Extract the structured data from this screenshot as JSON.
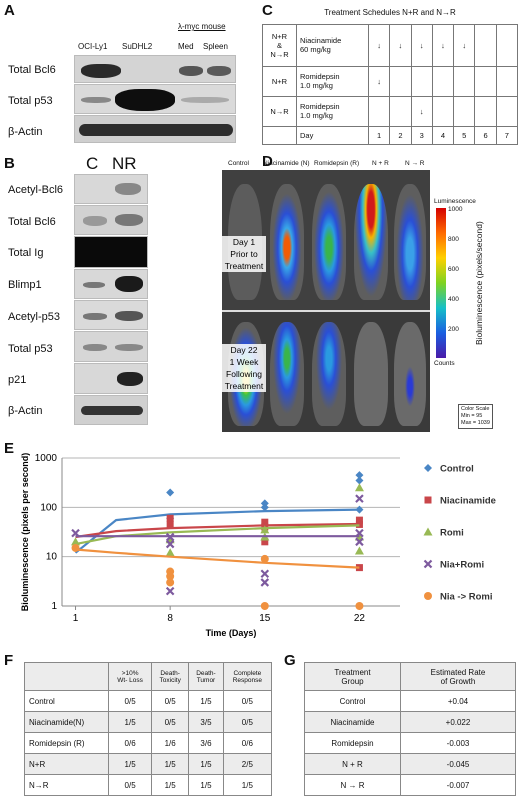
{
  "panel_letters": {
    "a": "A",
    "b": "B",
    "c": "C",
    "d": "D",
    "e": "E",
    "f": "F",
    "g": "G"
  },
  "panel_a": {
    "lanes": [
      "OCI-Ly1",
      "SuDHL2",
      "Med",
      "Spleen"
    ],
    "group_label": "λ-myc mouse",
    "rows": [
      "Total Bcl6",
      "Total p53",
      "β-Actin"
    ]
  },
  "panel_b": {
    "lanes": [
      "C",
      "NR"
    ],
    "rows": [
      "Acetyl-Bcl6",
      "Total Bcl6",
      "Total Ig",
      "Blimp1",
      "Acetyl-p53",
      "Total p53",
      "p21",
      "β-Actin"
    ]
  },
  "panel_c": {
    "title": "Treatment Schedules N+R and N→R",
    "rows": [
      {
        "group": "N+R\n&\nN→R",
        "drug": "Niacinamide\n60 mg/kg",
        "marks": [
          "↓",
          "↓",
          "↓",
          "↓",
          "↓",
          "",
          ""
        ]
      },
      {
        "group": "N+R",
        "drug": "Romidepsin\n1.0 mg/kg",
        "marks": [
          "↓",
          "",
          "",
          "",
          "",
          "",
          ""
        ]
      },
      {
        "group": "N→R",
        "drug": "Romidepsin\n1.0 mg/kg",
        "marks": [
          "",
          "",
          "↓",
          "",
          "",
          "",
          ""
        ]
      }
    ],
    "day_label": "Day",
    "days": [
      "1",
      "2",
      "3",
      "4",
      "5",
      "6",
      "7"
    ]
  },
  "panel_d": {
    "columns": [
      "Control",
      "Niacinamide (N)",
      "Romidepsin (R)",
      "N + R",
      "N → R"
    ],
    "row1_label": [
      "Day 1",
      "Prior to",
      "Treatment"
    ],
    "row2_label": [
      "Day 22",
      "1 Week",
      "Following",
      "Treatment"
    ],
    "colorbar_title": "Luminescence",
    "colorbar_ticks": [
      "1000",
      "800",
      "600",
      "400",
      "200"
    ],
    "colorbar_unit": "Counts",
    "colorbar_axis_label": "Bioluminescence (pixels/second)",
    "color_scale": [
      "Color Scale",
      "Min = 95",
      "Max = 1039"
    ]
  },
  "chart_data": {
    "type": "scatter",
    "xlabel": "Time (Days)",
    "ylabel": "Bioluminescence (pixels per second)",
    "x_ticks": [
      1,
      8,
      15,
      22
    ],
    "y_ticks": [
      "1",
      "10",
      "100",
      "1000"
    ],
    "ylim": [
      1,
      1000
    ],
    "yscale": "log",
    "series": [
      {
        "name": "Control",
        "color": "#4a86c5",
        "marker": "diamond",
        "points": [
          [
            8,
            200
          ],
          [
            8,
            60
          ],
          [
            15,
            120
          ],
          [
            15,
            100
          ],
          [
            22,
            450
          ],
          [
            22,
            350
          ],
          [
            22,
            90
          ]
        ],
        "trend": [
          [
            1,
            12
          ],
          [
            4,
            55
          ],
          [
            8,
            72
          ],
          [
            15,
            84
          ],
          [
            22,
            90
          ]
        ]
      },
      {
        "name": "Niacinamide",
        "color": "#c9464a",
        "marker": "square",
        "points": [
          [
            8,
            60
          ],
          [
            8,
            45
          ],
          [
            15,
            50
          ],
          [
            15,
            40
          ],
          [
            15,
            20
          ],
          [
            22,
            55
          ],
          [
            22,
            45
          ],
          [
            22,
            6
          ]
        ],
        "trend": [
          [
            1,
            25
          ],
          [
            4,
            33
          ],
          [
            8,
            38
          ],
          [
            15,
            43
          ],
          [
            22,
            46
          ]
        ]
      },
      {
        "name": "Romi",
        "color": "#98b954",
        "marker": "triangle",
        "points": [
          [
            1,
            20
          ],
          [
            8,
            22
          ],
          [
            8,
            12
          ],
          [
            15,
            35
          ],
          [
            15,
            25
          ],
          [
            22,
            250
          ],
          [
            22,
            25
          ],
          [
            22,
            13
          ]
        ],
        "trend": [
          [
            1,
            18
          ],
          [
            4,
            26
          ],
          [
            8,
            31
          ],
          [
            15,
            38
          ],
          [
            22,
            43
          ]
        ]
      },
      {
        "name": "Nia+Romi",
        "color": "#7d5a9e",
        "marker": "x",
        "points": [
          [
            1,
            30
          ],
          [
            8,
            2
          ],
          [
            8,
            18
          ],
          [
            8,
            25
          ],
          [
            15,
            3
          ],
          [
            15,
            4.5
          ],
          [
            22,
            150
          ],
          [
            22,
            30
          ],
          [
            22,
            20
          ]
        ],
        "trend": [
          [
            1,
            26
          ],
          [
            4,
            26
          ],
          [
            8,
            26
          ],
          [
            15,
            26
          ],
          [
            22,
            26
          ]
        ]
      },
      {
        "name": "Nia -> Romi",
        "color": "#f0913f",
        "marker": "circle",
        "points": [
          [
            1,
            15
          ],
          [
            8,
            4
          ],
          [
            8,
            3
          ],
          [
            8,
            5
          ],
          [
            15,
            9
          ],
          [
            15,
            1
          ],
          [
            22,
            1
          ]
        ],
        "trend": [
          [
            1,
            14
          ],
          [
            4,
            12
          ],
          [
            8,
            10
          ],
          [
            15,
            7.5
          ],
          [
            22,
            6
          ]
        ]
      }
    ]
  },
  "panel_f": {
    "headers": [
      "",
      ">10%\nWt- Loss",
      "Death-\nToxicity",
      "Death-\nTumor",
      "Complete\nResponse"
    ],
    "rows": [
      [
        "Control",
        "0/5",
        "0/5",
        "1/5",
        "0/5"
      ],
      [
        "Niacinamide(N)",
        "1/5",
        "0/5",
        "3/5",
        "0/5"
      ],
      [
        "Romidepsin (R)",
        "0/6",
        "1/6",
        "3/6",
        "0/6"
      ],
      [
        "N+R",
        "1/5",
        "1/5",
        "1/5",
        "2/5"
      ],
      [
        "N→R",
        "0/5",
        "1/5",
        "1/5",
        "1/5"
      ]
    ]
  },
  "panel_g": {
    "headers": [
      "Treatment\nGroup",
      "Estimated Rate\nof Growth"
    ],
    "rows": [
      [
        "Control",
        "+0.04"
      ],
      [
        "Niacinamide",
        "+0.022"
      ],
      [
        "Romidepsin",
        "-0.003"
      ],
      [
        "N + R",
        "-0.045"
      ],
      [
        "N → R",
        "-0.007"
      ]
    ]
  }
}
